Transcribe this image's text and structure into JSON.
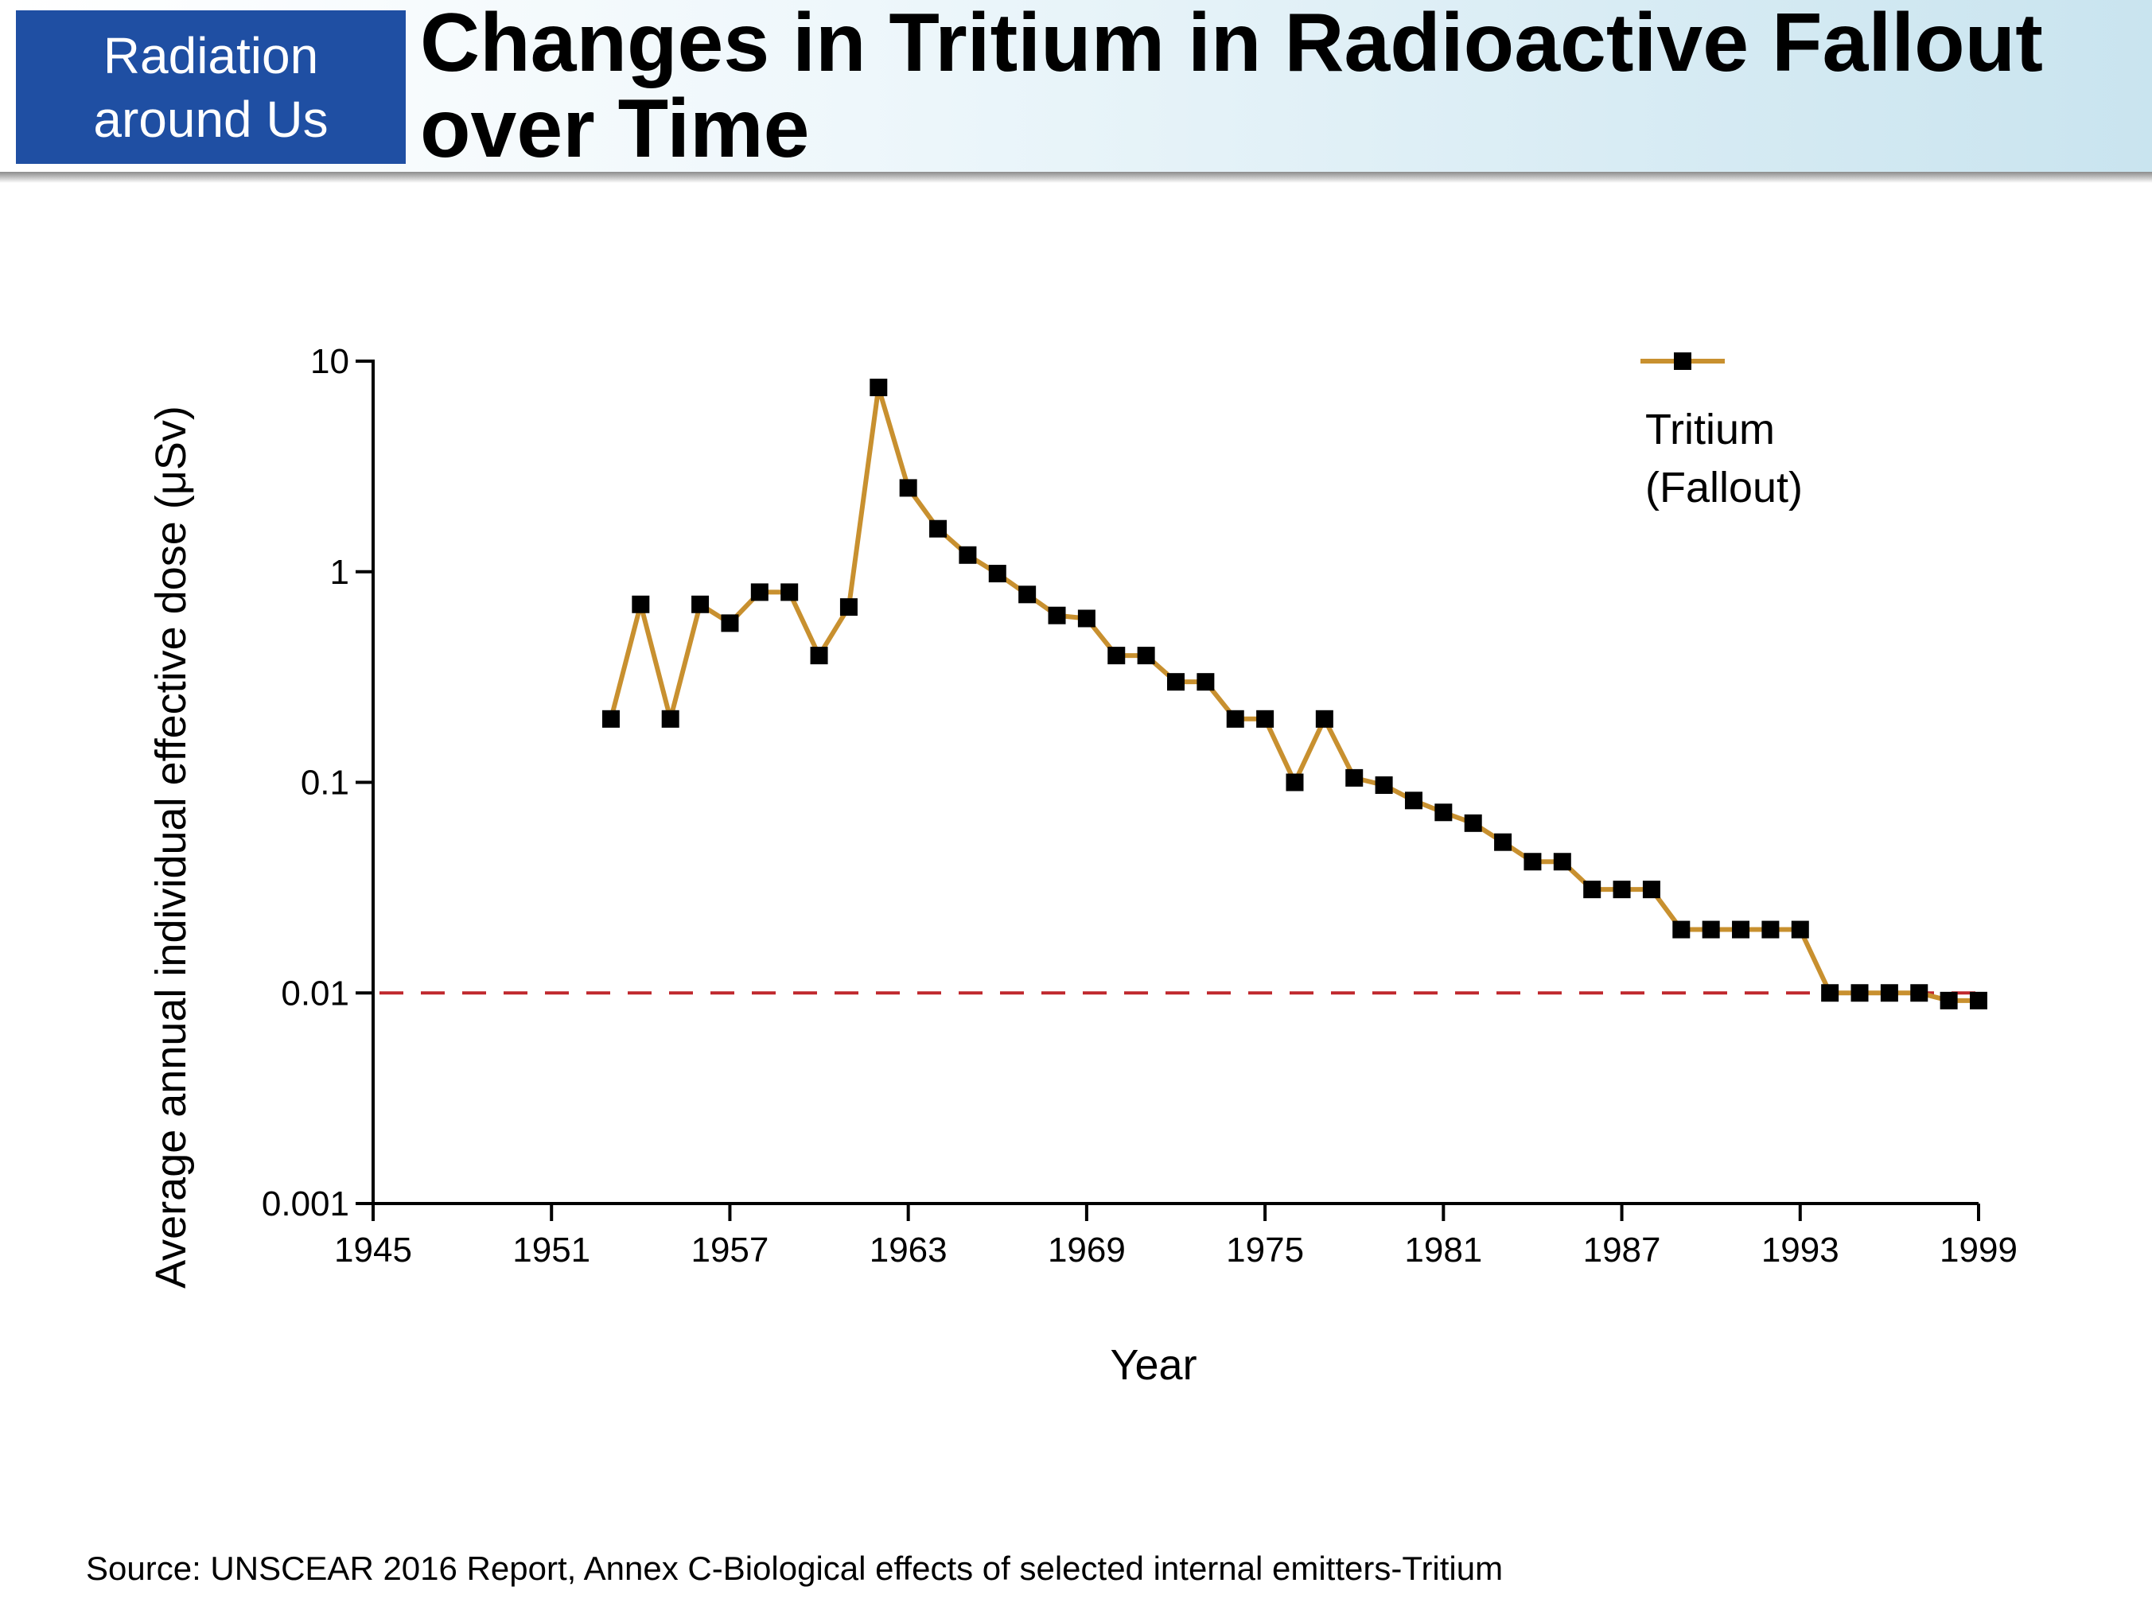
{
  "header": {
    "badge_line1": "Radiation",
    "badge_line2": "around Us",
    "title_line1": "Changes in Tritium in Radioactive Fallout",
    "title_line2": "over Time"
  },
  "source": "Source: UNSCEAR 2016 Report, Annex C-Biological effects of selected internal emitters-Tritium",
  "colors": {
    "badge_bg": "#1f4fa3",
    "series_line": "#c8902f",
    "marker": "#000000",
    "reference_line": "#c0282d"
  },
  "chart_data": {
    "type": "line",
    "title": "",
    "xlabel": "Year",
    "ylabel": "Average annual individual effective dose (μSv)",
    "y_scale": "log",
    "xlim": [
      1945,
      1999
    ],
    "ylim": [
      0.001,
      10
    ],
    "x_ticks": [
      "1945",
      "1951",
      "1957",
      "1963",
      "1969",
      "1975",
      "1981",
      "1987",
      "1993",
      "1999"
    ],
    "y_ticks": [
      "10",
      "1",
      "0.1",
      "0.01",
      "0.001"
    ],
    "reference_line": {
      "y": 0.01,
      "style": "dashed"
    },
    "legend": {
      "position": "top-right",
      "line1": "Tritium",
      "line2": "(Fallout)"
    },
    "series": [
      {
        "name": "Tritium (Fallout)",
        "x": [
          1953,
          1954,
          1955,
          1956,
          1957,
          1958,
          1959,
          1960,
          1961,
          1962,
          1963,
          1964,
          1965,
          1966,
          1967,
          1968,
          1969,
          1970,
          1971,
          1972,
          1973,
          1974,
          1975,
          1976,
          1977,
          1978,
          1979,
          1980,
          1981,
          1982,
          1983,
          1984,
          1985,
          1986,
          1987,
          1988,
          1989,
          1990,
          1991,
          1992,
          1993,
          1994,
          1995,
          1996,
          1997,
          1998,
          1999
        ],
        "values": [
          0.2,
          0.7,
          0.2,
          0.7,
          0.57,
          0.8,
          0.8,
          0.4,
          0.68,
          7.5,
          2.5,
          1.6,
          1.2,
          0.98,
          0.78,
          0.62,
          0.6,
          0.4,
          0.4,
          0.3,
          0.3,
          0.2,
          0.2,
          0.1,
          0.2,
          0.105,
          0.097,
          0.082,
          0.072,
          0.064,
          0.052,
          0.042,
          0.042,
          0.031,
          0.031,
          0.031,
          0.02,
          0.02,
          0.02,
          0.02,
          0.02,
          0.01,
          0.01,
          0.01,
          0.01,
          0.0092,
          0.0092
        ]
      }
    ]
  }
}
